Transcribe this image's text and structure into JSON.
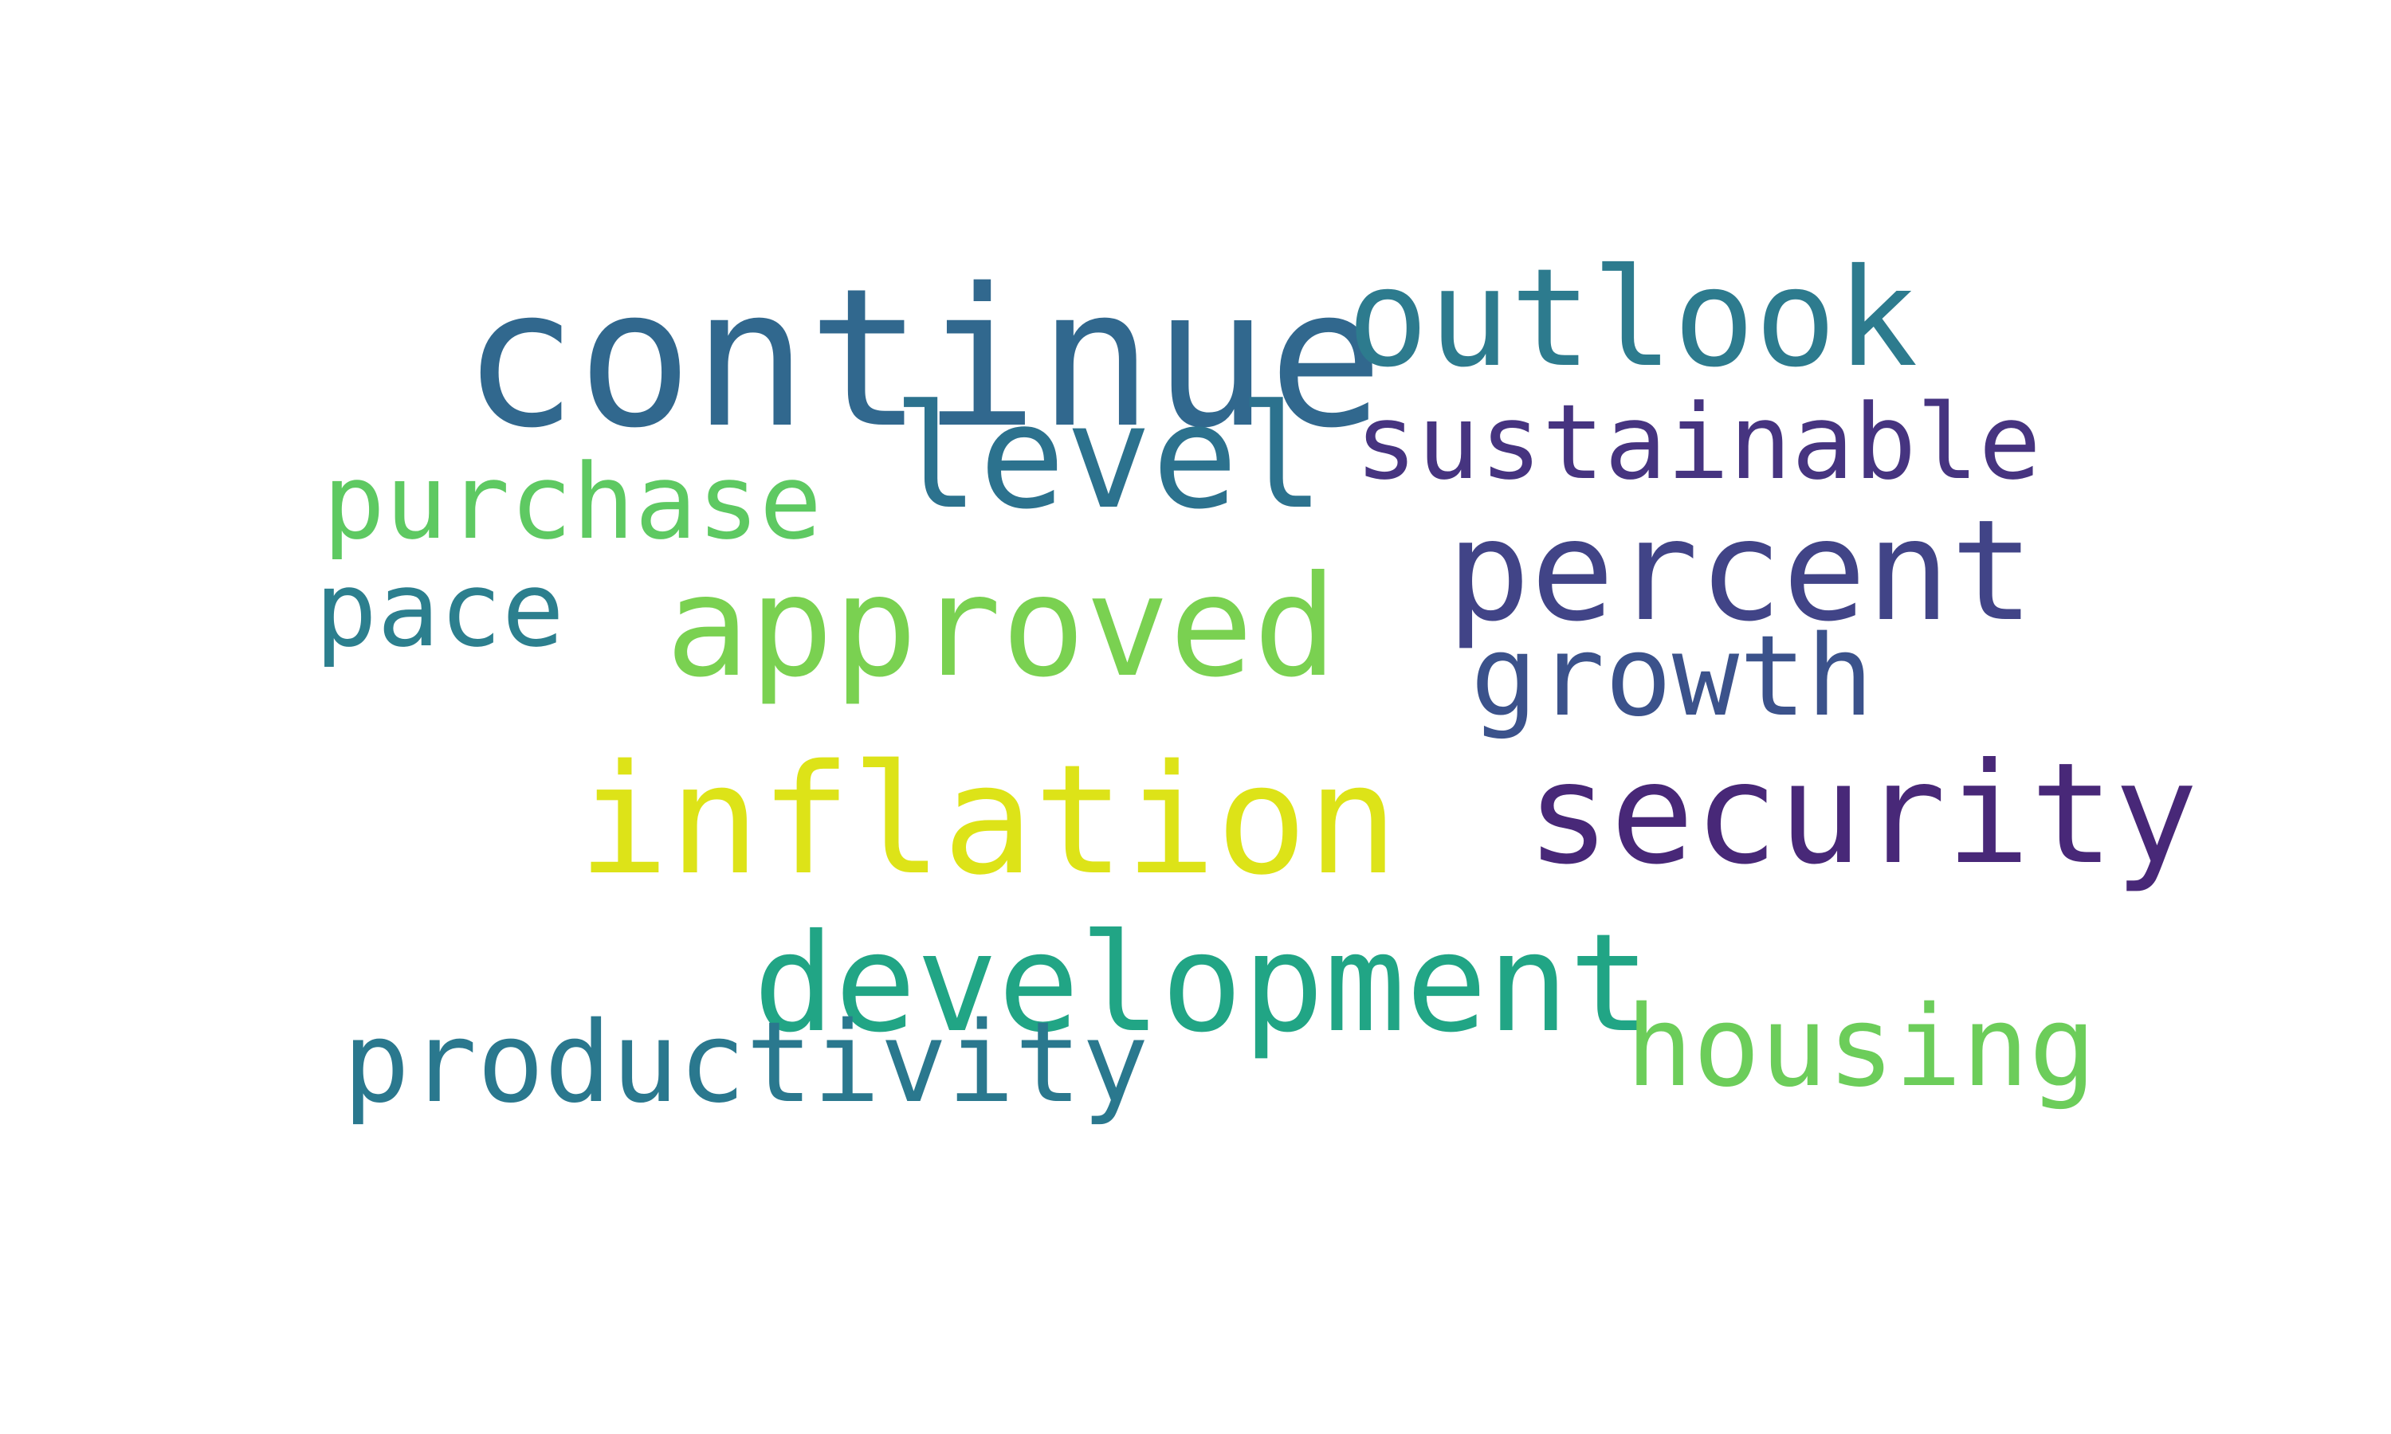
{
  "words": {
    "continue": {
      "text": "continue",
      "color": "#31688e"
    },
    "outlook": {
      "text": "outlook",
      "color": "#2d7b8e"
    },
    "level": {
      "text": "level",
      "color": "#2c728e"
    },
    "sustainable": {
      "text": "sustainable",
      "color": "#463480"
    },
    "purchase": {
      "text": "purchase",
      "color": "#5ec962"
    },
    "percent": {
      "text": "percent",
      "color": "#414487"
    },
    "pace": {
      "text": "pace",
      "color": "#2c7f8e"
    },
    "approved": {
      "text": "approved",
      "color": "#7ad151"
    },
    "growth": {
      "text": "growth",
      "color": "#3b528b"
    },
    "inflation": {
      "text": "inflation",
      "color": "#dde318"
    },
    "security": {
      "text": "security",
      "color": "#482878"
    },
    "development": {
      "text": "development",
      "color": "#21a585"
    },
    "housing": {
      "text": "housing",
      "color": "#6ccd5a"
    },
    "productivity": {
      "text": "productivity",
      "color": "#2a788e"
    }
  }
}
